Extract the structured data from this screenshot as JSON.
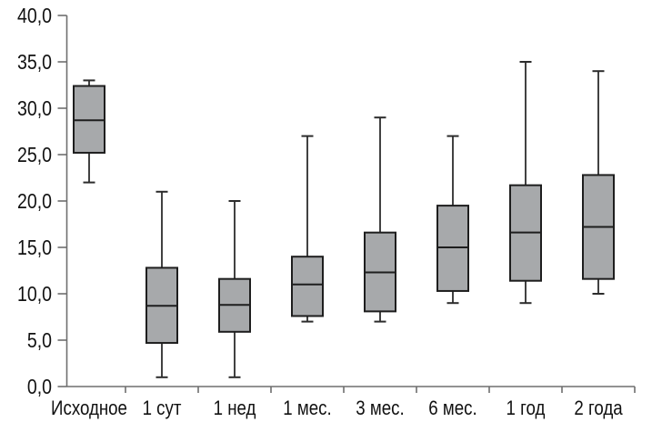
{
  "chart_data": {
    "type": "boxplot",
    "title": "",
    "xlabel": "",
    "ylabel": "",
    "categories": [
      "Исходное",
      "1 сут",
      "1 нед",
      "1 мес.",
      "3 мес.",
      "6 мес.",
      "1 год",
      "2 года"
    ],
    "boxes": [
      {
        "category": "Исходное",
        "whisker_low": 22,
        "q1": 25.2,
        "median": 28.7,
        "q3": 32.4,
        "whisker_high": 33
      },
      {
        "category": "1 сут",
        "whisker_low": 1,
        "q1": 4.7,
        "median": 8.7,
        "q3": 12.8,
        "whisker_high": 21
      },
      {
        "category": "1 нед",
        "whisker_low": 1,
        "q1": 5.9,
        "median": 8.8,
        "q3": 11.6,
        "whisker_high": 20
      },
      {
        "category": "1 мес.",
        "whisker_low": 7,
        "q1": 7.6,
        "median": 11.0,
        "q3": 14.0,
        "whisker_high": 27
      },
      {
        "category": "3 мес.",
        "whisker_low": 7,
        "q1": 8.1,
        "median": 12.3,
        "q3": 16.6,
        "whisker_high": 29
      },
      {
        "category": "6 мес.",
        "whisker_low": 9,
        "q1": 10.3,
        "median": 15.0,
        "q3": 19.5,
        "whisker_high": 27
      },
      {
        "category": "1 год",
        "whisker_low": 9,
        "q1": 11.4,
        "median": 16.6,
        "q3": 21.7,
        "whisker_high": 35
      },
      {
        "category": "2 года",
        "whisker_low": 10,
        "q1": 11.6,
        "median": 17.2,
        "q3": 22.8,
        "whisker_high": 34
      }
    ],
    "ylim": [
      0,
      40
    ],
    "ytick_step": 5,
    "ytick_labels": [
      "0,0",
      "5,0",
      "10,0",
      "15,0",
      "20,0",
      "25,0",
      "30,0",
      "35,0",
      "40,0"
    ],
    "grid": false,
    "legend": false,
    "colors": {
      "background": "#ffffff",
      "box_fill": "#a7a9ab",
      "box_border": "#1e1e1e",
      "median_line": "#1e1e1e",
      "whisker": "#2c2c2c",
      "axis": "#6e6e6e",
      "tick_text": "#111111"
    }
  }
}
